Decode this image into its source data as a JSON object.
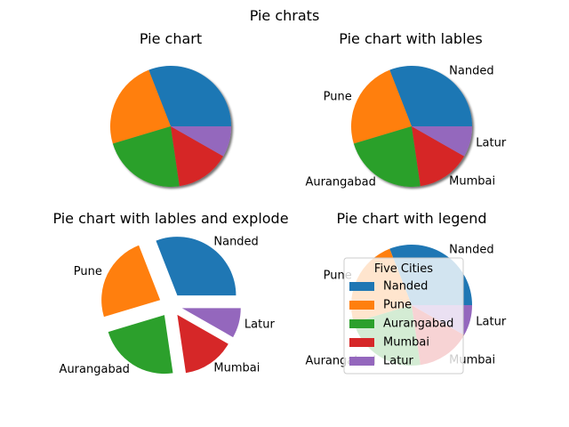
{
  "figure": {
    "suptitle": "Pie chrats"
  },
  "colors": [
    "#1f77b4",
    "#ff7f0e",
    "#2ca02c",
    "#d62728",
    "#9467bd"
  ],
  "chart_data": [
    {
      "type": "pie",
      "title": "Pie chart",
      "categories": [
        "Nanded",
        "Pune",
        "Aurangabad",
        "Mumbai",
        "Latur"
      ],
      "values": [
        30,
        23,
        22,
        14,
        8
      ],
      "show_labels": false,
      "shadow": true,
      "explode": [
        0,
        0,
        0,
        0,
        0
      ]
    },
    {
      "type": "pie",
      "title": "Pie chart with lables",
      "categories": [
        "Nanded",
        "Pune",
        "Aurangabad",
        "Mumbai",
        "Latur"
      ],
      "values": [
        30,
        23,
        22,
        14,
        8
      ],
      "show_labels": true,
      "shadow": true,
      "explode": [
        0,
        0,
        0,
        0,
        0
      ]
    },
    {
      "type": "pie",
      "title": "Pie chart with lables and explode",
      "categories": [
        "Nanded",
        "Pune",
        "Aurangabad",
        "Mumbai",
        "Latur"
      ],
      "values": [
        30,
        23,
        22,
        14,
        8
      ],
      "show_labels": true,
      "shadow": false,
      "explode": [
        0.2,
        0.2,
        0.2,
        0.2,
        0.2
      ]
    },
    {
      "type": "pie",
      "title": "Pie chart with legend",
      "categories": [
        "Nanded",
        "Pune",
        "Aurangabad",
        "Mumbai",
        "Latur"
      ],
      "values": [
        30,
        23,
        22,
        14,
        8
      ],
      "show_labels": true,
      "shadow": false,
      "explode": [
        0,
        0,
        0,
        0,
        0
      ],
      "legend": {
        "title": "Five Cities",
        "placement": "center",
        "entries": [
          "Nanded",
          "Pune",
          "Aurangabad",
          "Mumbai",
          "Latur"
        ]
      }
    }
  ]
}
